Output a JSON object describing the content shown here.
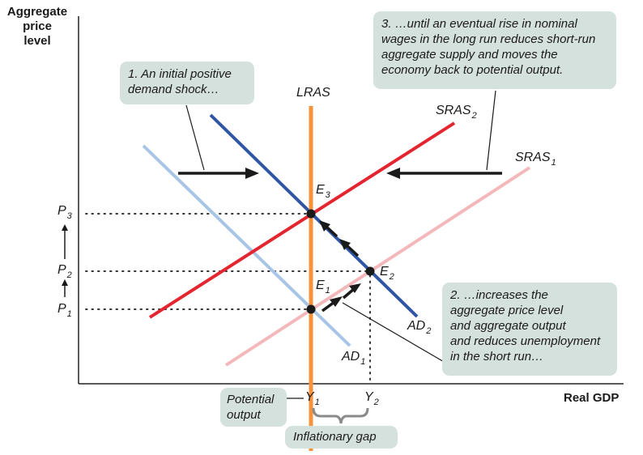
{
  "y_axis_title": [
    "Aggregate",
    "price",
    "level"
  ],
  "x_axis_title": "Real GDP",
  "callouts": {
    "step1": [
      "1. An initial positive",
      "demand shock…"
    ],
    "step2": [
      "2. …increases the",
      "aggregate price level",
      "and aggregate output",
      "and reduces unemployment",
      "in the short run…"
    ],
    "step3": [
      "3. …until an eventual rise in nominal",
      "wages in the long run reduces short-run",
      "aggregate supply and moves the",
      "economy back to potential output."
    ],
    "potential_output": [
      "Potential",
      "output"
    ],
    "gap": "Inflationary gap"
  },
  "curves": {
    "lras": "LRAS",
    "sras2": {
      "base": "SRAS",
      "sub": "2"
    },
    "sras1": {
      "base": "SRAS",
      "sub": "1"
    },
    "ad2": {
      "base": "AD",
      "sub": "2"
    },
    "ad1": {
      "base": "AD",
      "sub": "1"
    }
  },
  "points": {
    "e1": {
      "base": "E",
      "sub": "1"
    },
    "e2": {
      "base": "E",
      "sub": "2"
    },
    "e3": {
      "base": "E",
      "sub": "3"
    }
  },
  "y_ticks": {
    "p3": {
      "base": "P",
      "sub": "3"
    },
    "p2": {
      "base": "P",
      "sub": "2"
    },
    "p1": {
      "base": "P",
      "sub": "1"
    }
  },
  "x_ticks": {
    "y1": {
      "base": "Y",
      "sub": "1"
    },
    "y2": {
      "base": "Y",
      "sub": "2"
    }
  },
  "colors": {
    "lras": "#f7923a",
    "sras2": "#e32530",
    "sras1": "#f4b8ba",
    "ad2": "#2f55a5",
    "ad1": "#a8c5e6",
    "callout_bg": "#d5e1dd",
    "bracket": "#8a8a8a"
  }
}
